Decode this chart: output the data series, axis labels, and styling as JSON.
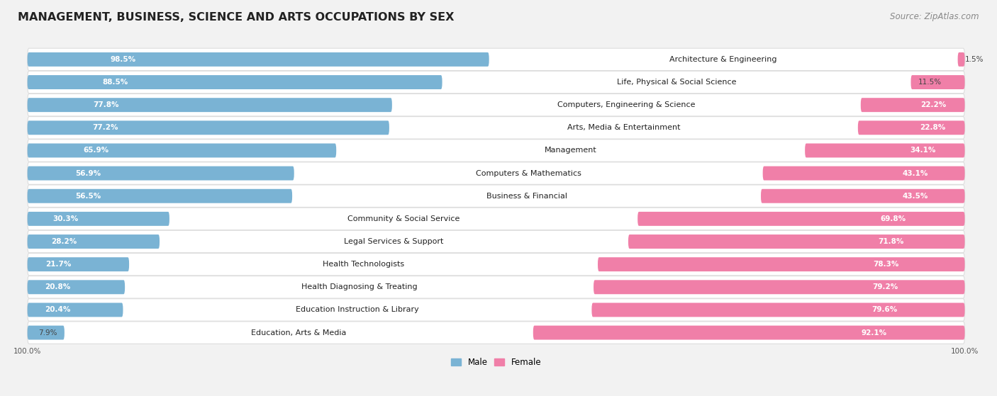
{
  "title": "MANAGEMENT, BUSINESS, SCIENCE AND ARTS OCCUPATIONS BY SEX",
  "source": "Source: ZipAtlas.com",
  "categories": [
    "Architecture & Engineering",
    "Life, Physical & Social Science",
    "Computers, Engineering & Science",
    "Arts, Media & Entertainment",
    "Management",
    "Computers & Mathematics",
    "Business & Financial",
    "Community & Social Service",
    "Legal Services & Support",
    "Health Technologists",
    "Health Diagnosing & Treating",
    "Education Instruction & Library",
    "Education, Arts & Media"
  ],
  "male_pct": [
    98.5,
    88.5,
    77.8,
    77.2,
    65.9,
    56.9,
    56.5,
    30.3,
    28.2,
    21.7,
    20.8,
    20.4,
    7.9
  ],
  "female_pct": [
    1.5,
    11.5,
    22.2,
    22.8,
    34.1,
    43.1,
    43.5,
    69.8,
    71.8,
    78.3,
    79.2,
    79.6,
    92.1
  ],
  "male_color": "#7ab3d4",
  "female_color": "#f07fa8",
  "bg_color": "#f2f2f2",
  "row_bg_color": "#ffffff",
  "row_border_color": "#dddddd",
  "title_fontsize": 11.5,
  "source_fontsize": 8.5,
  "cat_label_fontsize": 8.0,
  "bar_label_fontsize": 7.5,
  "bar_height": 0.62,
  "legend_male": "Male",
  "legend_female": "Female",
  "xlim_left": -103,
  "xlim_right": 103,
  "inside_label_threshold": 15
}
